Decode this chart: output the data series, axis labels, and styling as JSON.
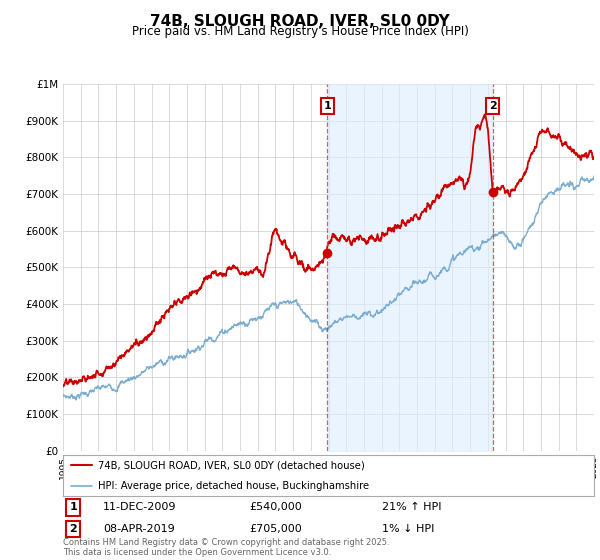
{
  "title": "74B, SLOUGH ROAD, IVER, SL0 0DY",
  "subtitle": "Price paid vs. HM Land Registry's House Price Index (HPI)",
  "yticks": [
    0,
    100000,
    200000,
    300000,
    400000,
    500000,
    600000,
    700000,
    800000,
    900000,
    1000000
  ],
  "ytick_labels": [
    "£0",
    "£100K",
    "£200K",
    "£300K",
    "£400K",
    "£500K",
    "£600K",
    "£700K",
    "£800K",
    "£900K",
    "£1M"
  ],
  "xmin": 1995,
  "xmax": 2025,
  "ymin": 0,
  "ymax": 1000000,
  "marker1_x": 2009.94,
  "marker1_y": 540000,
  "marker2_x": 2019.27,
  "marker2_y": 705000,
  "marker1_date": "11-DEC-2009",
  "marker1_price": "£540,000",
  "marker1_hpi": "21% ↑ HPI",
  "marker2_date": "08-APR-2019",
  "marker2_price": "£705,000",
  "marker2_hpi": "1% ↓ HPI",
  "legend_line1": "74B, SLOUGH ROAD, IVER, SL0 0DY (detached house)",
  "legend_line2": "HPI: Average price, detached house, Buckinghamshire",
  "red_color": "#cc0000",
  "blue_color": "#7aadcf",
  "shade_color": "#ddeeff",
  "dashed_color": "#cc4444",
  "footer": "Contains HM Land Registry data © Crown copyright and database right 2025.\nThis data is licensed under the Open Government Licence v3.0.",
  "background_color": "#ffffff",
  "grid_color": "#cccccc",
  "hpi_anchors_x": [
    1995.0,
    1995.5,
    1996.0,
    1996.5,
    1997.0,
    1997.5,
    1998.0,
    1998.5,
    1999.0,
    1999.5,
    2000.0,
    2000.5,
    2001.0,
    2001.5,
    2002.0,
    2002.5,
    2003.0,
    2003.5,
    2004.0,
    2004.5,
    2005.0,
    2005.5,
    2006.0,
    2006.5,
    2007.0,
    2007.5,
    2008.0,
    2008.5,
    2009.0,
    2009.5,
    2010.0,
    2010.5,
    2011.0,
    2011.5,
    2012.0,
    2012.5,
    2013.0,
    2013.5,
    2014.0,
    2014.5,
    2015.0,
    2015.5,
    2016.0,
    2016.5,
    2017.0,
    2017.5,
    2018.0,
    2018.5,
    2019.0,
    2019.5,
    2020.0,
    2020.5,
    2021.0,
    2021.5,
    2022.0,
    2022.5,
    2023.0,
    2023.5,
    2024.0,
    2024.5,
    2025.0
  ],
  "hpi_anchors_y": [
    148000,
    150000,
    155000,
    160000,
    166000,
    172000,
    180000,
    190000,
    202000,
    215000,
    228000,
    240000,
    250000,
    258000,
    268000,
    282000,
    298000,
    312000,
    325000,
    338000,
    348000,
    358000,
    368000,
    378000,
    390000,
    400000,
    405000,
    390000,
    365000,
    340000,
    340000,
    355000,
    368000,
    370000,
    368000,
    372000,
    385000,
    400000,
    418000,
    435000,
    450000,
    465000,
    480000,
    500000,
    520000,
    535000,
    548000,
    562000,
    575000,
    590000,
    578000,
    555000,
    580000,
    620000,
    670000,
    710000,
    720000,
    718000,
    720000,
    730000,
    740000
  ],
  "red_anchors_x": [
    1995.0,
    1995.5,
    1996.0,
    1996.5,
    1997.0,
    1997.5,
    1998.0,
    1998.5,
    1999.0,
    1999.5,
    2000.0,
    2000.5,
    2001.0,
    2001.5,
    2002.0,
    2002.5,
    2003.0,
    2003.5,
    2004.0,
    2004.5,
    2005.0,
    2005.5,
    2006.0,
    2006.5,
    2007.0,
    2007.2,
    2007.5,
    2007.8,
    2008.0,
    2008.5,
    2009.0,
    2009.5,
    2009.94,
    2010.0,
    2010.5,
    2011.0,
    2011.5,
    2012.0,
    2012.5,
    2013.0,
    2013.5,
    2014.0,
    2014.5,
    2015.0,
    2015.5,
    2016.0,
    2016.5,
    2017.0,
    2017.5,
    2018.0,
    2018.3,
    2018.6,
    2019.0,
    2019.27,
    2019.5,
    2020.0,
    2020.5,
    2021.0,
    2021.5,
    2022.0,
    2022.5,
    2023.0,
    2023.5,
    2024.0,
    2024.5,
    2025.0
  ],
  "red_anchors_y": [
    178000,
    182000,
    190000,
    200000,
    215000,
    230000,
    248000,
    268000,
    288000,
    308000,
    330000,
    355000,
    378000,
    398000,
    418000,
    440000,
    462000,
    478000,
    492000,
    498000,
    496000,
    496000,
    498000,
    505000,
    600000,
    580000,
    558000,
    540000,
    525000,
    505000,
    490000,
    515000,
    540000,
    555000,
    568000,
    578000,
    580000,
    582000,
    585000,
    592000,
    600000,
    610000,
    625000,
    648000,
    668000,
    688000,
    710000,
    730000,
    740000,
    748000,
    860000,
    880000,
    875000,
    705000,
    698000,
    705000,
    718000,
    760000,
    800000,
    870000,
    860000,
    840000,
    830000,
    820000,
    808000,
    800000
  ]
}
